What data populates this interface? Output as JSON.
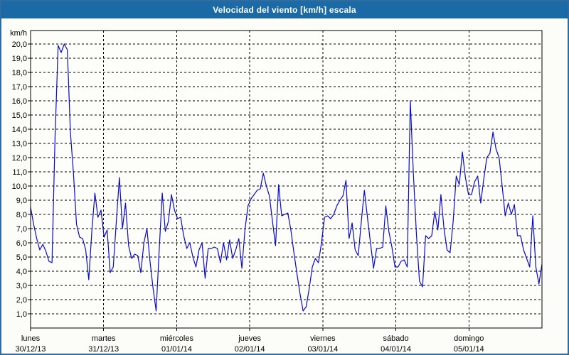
{
  "window": {
    "title": "Velocidad del viento [km/h] escala"
  },
  "colors": {
    "title_bar": "#1b6aa5",
    "frame_border": "#2f6c9f",
    "panel_bg": "#fcfdf8",
    "plot_bg": "#fdfdfa",
    "line": "#0a0ac8",
    "grid": "#000000",
    "text": "#000000"
  },
  "chart_data": {
    "type": "line",
    "title": "Velocidad del viento [km/h] escala",
    "unit_label": "km/h",
    "ylim": [
      0,
      20.95
    ],
    "ytick_values": [
      20,
      19,
      18,
      17,
      16,
      15,
      14,
      13,
      12,
      11,
      10,
      9,
      8,
      7,
      6,
      5,
      4,
      3,
      2,
      1
    ],
    "ytick_labels": [
      "20,0",
      "19,0",
      "18,0",
      "17,0",
      "16,0",
      "15,0",
      "14,0",
      "13,0",
      "12,0",
      "11,0",
      "10,0",
      "9,0",
      "8,0",
      "7,0",
      "6,0",
      "5,0",
      "4,0",
      "3,0",
      "2,0",
      "1,0"
    ],
    "grid": true,
    "legend": "none",
    "x_days": [
      {
        "name": "lunes",
        "date": "30/12/13"
      },
      {
        "name": "martes",
        "date": "31/12/13"
      },
      {
        "name": "miércoles",
        "date": "01/01/14"
      },
      {
        "name": "jueves",
        "date": "02/01/14"
      },
      {
        "name": "viernes",
        "date": "03/01/14"
      },
      {
        "name": "sábado",
        "date": "04/01/14"
      },
      {
        "name": "domingo",
        "date": "05/01/14"
      }
    ],
    "hours_per_day": 24,
    "series": [
      {
        "name": "Velocidad del viento",
        "values": [
          8.5,
          7.3,
          6.3,
          5.5,
          5.9,
          5.4,
          4.7,
          4.6,
          13.5,
          19.9,
          19.4,
          20.0,
          19.6,
          13.8,
          10.9,
          7.3,
          6.4,
          6.3,
          5.5,
          3.4,
          6.8,
          9.5,
          7.8,
          8.3,
          6.4,
          6.9,
          3.9,
          4.3,
          7.5,
          10.6,
          7.0,
          8.8,
          5.8,
          4.9,
          5.2,
          5.1,
          3.9,
          6.0,
          7.0,
          4.7,
          2.8,
          1.2,
          5.5,
          9.5,
          6.8,
          7.5,
          9.4,
          8.3,
          7.7,
          7.8,
          6.5,
          5.6,
          6.0,
          5.0,
          4.3,
          5.5,
          6.0,
          3.5,
          5.6,
          5.6,
          5.7,
          5.6,
          4.6,
          6.0,
          4.8,
          6.2,
          4.9,
          5.5,
          6.3,
          4.2,
          6.9,
          8.6,
          9.1,
          9.4,
          9.7,
          9.8,
          10.9,
          10.0,
          9.3,
          7.5,
          5.8,
          10.1,
          7.9,
          8.0,
          8.1,
          6.9,
          5.3,
          3.8,
          2.4,
          1.2,
          1.5,
          2.8,
          4.3,
          4.9,
          4.6,
          6.0,
          7.8,
          7.9,
          7.7,
          8.0,
          8.6,
          9.0,
          9.3,
          10.4,
          6.3,
          7.4,
          5.5,
          5.1,
          7.5,
          9.7,
          7.8,
          6.0,
          4.2,
          5.6,
          5.6,
          5.7,
          8.6,
          6.8,
          5.7,
          4.3,
          4.3,
          4.7,
          4.8,
          4.3,
          16.0,
          10.9,
          6.6,
          3.3,
          2.9,
          6.5,
          6.3,
          6.5,
          8.2,
          6.9,
          9.4,
          7.0,
          5.5,
          5.3,
          7.5,
          10.7,
          10.1,
          12.4,
          10.6,
          9.4,
          9.4,
          10.3,
          10.7,
          8.8,
          10.5,
          12.0,
          12.3,
          13.8,
          12.6,
          12.0,
          10.0,
          7.9,
          8.8,
          8.0,
          8.7,
          6.5,
          6.5,
          5.5,
          4.9,
          4.3,
          7.9,
          4.3,
          3.1,
          4.5
        ]
      }
    ]
  }
}
